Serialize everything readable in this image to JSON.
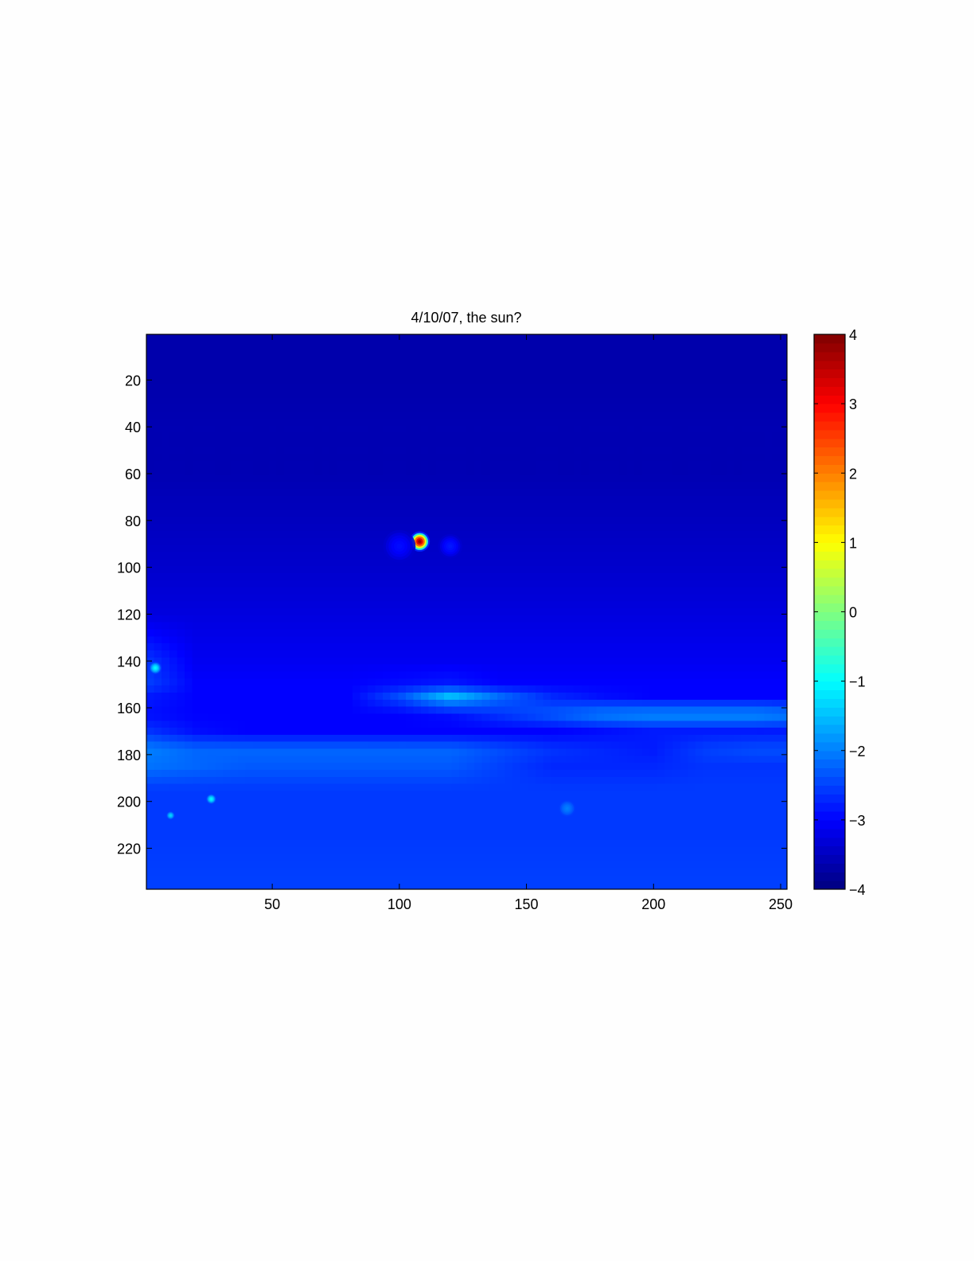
{
  "chart_data": {
    "type": "heatmap",
    "title": "4/10/07, the sun?",
    "xlabel": "",
    "ylabel": "",
    "xlim": [
      0.5,
      252.5
    ],
    "ylim": [
      0.5,
      237.5
    ],
    "y_direction": "reversed",
    "x_ticks": [
      50,
      100,
      150,
      200,
      250
    ],
    "y_ticks": [
      20,
      40,
      60,
      80,
      100,
      120,
      140,
      160,
      180,
      200,
      220
    ],
    "colormap": "jet",
    "clim": [
      -4,
      4
    ],
    "colorbar": {
      "position": "right",
      "ticks": [
        4,
        3,
        2,
        1,
        0,
        -1,
        -2,
        -3,
        -4
      ],
      "tick_labels": [
        "4",
        "3",
        "2",
        "1",
        "0",
        "−1",
        "−2",
        "−3",
        "−4"
      ]
    },
    "grid": false,
    "approx_grid": {
      "x": [
        1,
        20,
        40,
        60,
        80,
        100,
        120,
        140,
        160,
        180,
        200,
        220,
        240,
        252
      ],
      "y": [
        1,
        20,
        40,
        60,
        80,
        100,
        120,
        140,
        150,
        155,
        163,
        170,
        178,
        185,
        195,
        215,
        237
      ],
      "values": [
        [
          -3.65,
          -3.65,
          -3.65,
          -3.65,
          -3.65,
          -3.65,
          -3.65,
          -3.65,
          -3.65,
          -3.65,
          -3.65,
          -3.65,
          -3.65,
          -3.65
        ],
        [
          -3.65,
          -3.65,
          -3.65,
          -3.65,
          -3.65,
          -3.65,
          -3.65,
          -3.65,
          -3.65,
          -3.65,
          -3.65,
          -3.65,
          -3.65,
          -3.65
        ],
        [
          -3.6,
          -3.6,
          -3.6,
          -3.6,
          -3.6,
          -3.6,
          -3.6,
          -3.6,
          -3.6,
          -3.6,
          -3.6,
          -3.6,
          -3.6,
          -3.6
        ],
        [
          -3.6,
          -3.6,
          -3.6,
          -3.6,
          -3.6,
          -3.6,
          -3.6,
          -3.6,
          -3.6,
          -3.6,
          -3.6,
          -3.6,
          -3.6,
          -3.6
        ],
        [
          -3.5,
          -3.5,
          -3.5,
          -3.5,
          -3.5,
          -3.5,
          -3.5,
          -3.5,
          -3.5,
          -3.5,
          -3.5,
          -3.5,
          -3.5,
          -3.5
        ],
        [
          -3.4,
          -3.4,
          -3.4,
          -3.4,
          -3.4,
          -3.4,
          -3.4,
          -3.4,
          -3.4,
          -3.4,
          -3.4,
          -3.4,
          -3.4,
          -3.4
        ],
        [
          -3.25,
          -3.25,
          -3.25,
          -3.25,
          -3.25,
          -3.25,
          -3.25,
          -3.25,
          -3.25,
          -3.25,
          -3.25,
          -3.25,
          -3.25,
          -3.25
        ],
        [
          -2.6,
          -3.1,
          -3.1,
          -3.1,
          -3.1,
          -3.1,
          -3.1,
          -3.1,
          -3.1,
          -3.1,
          -3.1,
          -3.1,
          -3.1,
          -3.1
        ],
        [
          -2.5,
          -3.0,
          -3.0,
          -3.0,
          -3.0,
          -2.9,
          -2.8,
          -3.0,
          -3.0,
          -3.0,
          -3.0,
          -3.0,
          -3.0,
          -3.0
        ],
        [
          -2.8,
          -3.0,
          -3.0,
          -3.0,
          -3.0,
          -2.4,
          -1.5,
          -2.2,
          -2.7,
          -2.9,
          -3.0,
          -3.0,
          -3.0,
          -3.0
        ],
        [
          -2.9,
          -3.0,
          -3.0,
          -3.0,
          -3.0,
          -3.0,
          -2.9,
          -2.6,
          -2.3,
          -2.0,
          -1.9,
          -1.9,
          -1.9,
          -2.0
        ],
        [
          -2.6,
          -2.9,
          -3.0,
          -3.0,
          -3.0,
          -3.0,
          -3.0,
          -3.0,
          -3.0,
          -2.9,
          -2.8,
          -2.8,
          -2.8,
          -2.8
        ],
        [
          -2.0,
          -2.2,
          -2.2,
          -2.2,
          -2.2,
          -2.2,
          -2.2,
          -2.4,
          -2.6,
          -2.7,
          -2.8,
          -2.5,
          -2.4,
          -2.4
        ],
        [
          -2.1,
          -2.2,
          -2.3,
          -2.3,
          -2.3,
          -2.3,
          -2.3,
          -2.5,
          -2.7,
          -2.7,
          -2.7,
          -2.6,
          -2.6,
          -2.6
        ],
        [
          -2.55,
          -2.55,
          -2.55,
          -2.55,
          -2.55,
          -2.55,
          -2.55,
          -2.55,
          -2.55,
          -2.55,
          -2.55,
          -2.55,
          -2.55,
          -2.55
        ],
        [
          -2.55,
          -2.55,
          -2.55,
          -2.55,
          -2.55,
          -2.55,
          -2.55,
          -2.55,
          -2.55,
          -2.55,
          -2.55,
          -2.55,
          -2.55,
          -2.55
        ],
        [
          -2.5,
          -2.5,
          -2.5,
          -2.5,
          -2.5,
          -2.5,
          -2.5,
          -2.5,
          -2.5,
          -2.5,
          -2.5,
          -2.5,
          -2.5,
          -2.5
        ]
      ]
    },
    "point_features": [
      {
        "x": 108,
        "y": 89,
        "value": 4.0,
        "radius": 2.5
      },
      {
        "x": 120,
        "y": 91,
        "value": -2.8,
        "radius": 3
      },
      {
        "x": 100,
        "y": 91,
        "value": -2.9,
        "radius": 4
      },
      {
        "x": 4,
        "y": 143,
        "value": -1.0,
        "radius": 1.5
      },
      {
        "x": 26,
        "y": 199,
        "value": -1.0,
        "radius": 1.2
      },
      {
        "x": 10,
        "y": 206,
        "value": -1.3,
        "radius": 1
      },
      {
        "x": 166,
        "y": 203,
        "value": -2.0,
        "radius": 2
      }
    ]
  }
}
